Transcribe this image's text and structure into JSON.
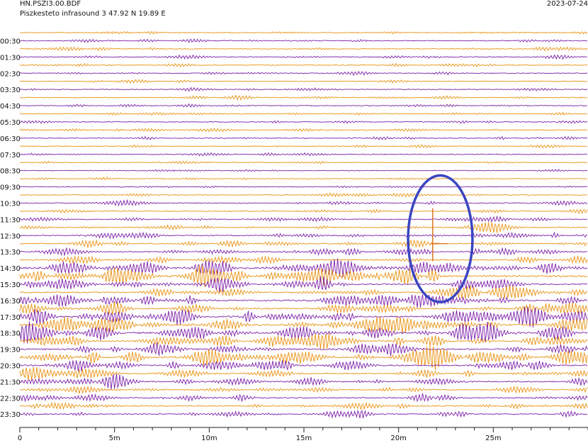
{
  "header": {
    "station": "HN.PSZI3.00.BDF",
    "location": "Piszkesteto infrasound 3  47.92 N 19.89 E",
    "date": "2023-07-24"
  },
  "chart_data": {
    "type": "line",
    "plot_kind": "helicorder",
    "series_colors": [
      "#e8910f",
      "#7c1fa8"
    ],
    "y_tick_labels": [
      "00:30",
      "01:30",
      "02:30",
      "03:30",
      "04:30",
      "05:30",
      "06:30",
      "07:30",
      "08:30",
      "09:30",
      "10:30",
      "11:30",
      "12:30",
      "13:30",
      "14:30",
      "15:30",
      "16:30",
      "17:30",
      "18:30",
      "19:30",
      "20:30",
      "21:30",
      "22:30",
      "23:30"
    ],
    "x_tick_labels": [
      "0",
      "5m",
      "10m",
      "15m",
      "20m",
      "25m"
    ],
    "x_ticks_min": [
      0,
      5,
      10,
      15,
      20,
      25
    ],
    "xlim_min": [
      0,
      30
    ],
    "traces_per_hour": 2,
    "trace_count": 48,
    "activity_profile": [
      0.18,
      0.22,
      0.22,
      0.24,
      0.22,
      0.2,
      0.18,
      0.2,
      0.22,
      0.2,
      0.18,
      0.22,
      0.22,
      0.22,
      0.2,
      0.18,
      0.16,
      0.14,
      0.16,
      0.16,
      0.22,
      0.3,
      0.26,
      0.3,
      0.32,
      0.4,
      0.42,
      0.48,
      0.5,
      0.85,
      1.0,
      0.7,
      0.55,
      0.8,
      0.7,
      0.9,
      0.95,
      0.9,
      0.75,
      0.7,
      0.9,
      0.65,
      0.55,
      0.55,
      0.5,
      0.45,
      0.45,
      0.4
    ],
    "event": {
      "minute": 21.8,
      "trace_start": 22,
      "trace_end": 28
    },
    "annotation": {
      "shape": "ellipse",
      "color": "#3a45c0",
      "center_min": 22.2,
      "center_trace": 25.4,
      "radius_min": 1.7,
      "radius_traces": 7.8
    }
  }
}
